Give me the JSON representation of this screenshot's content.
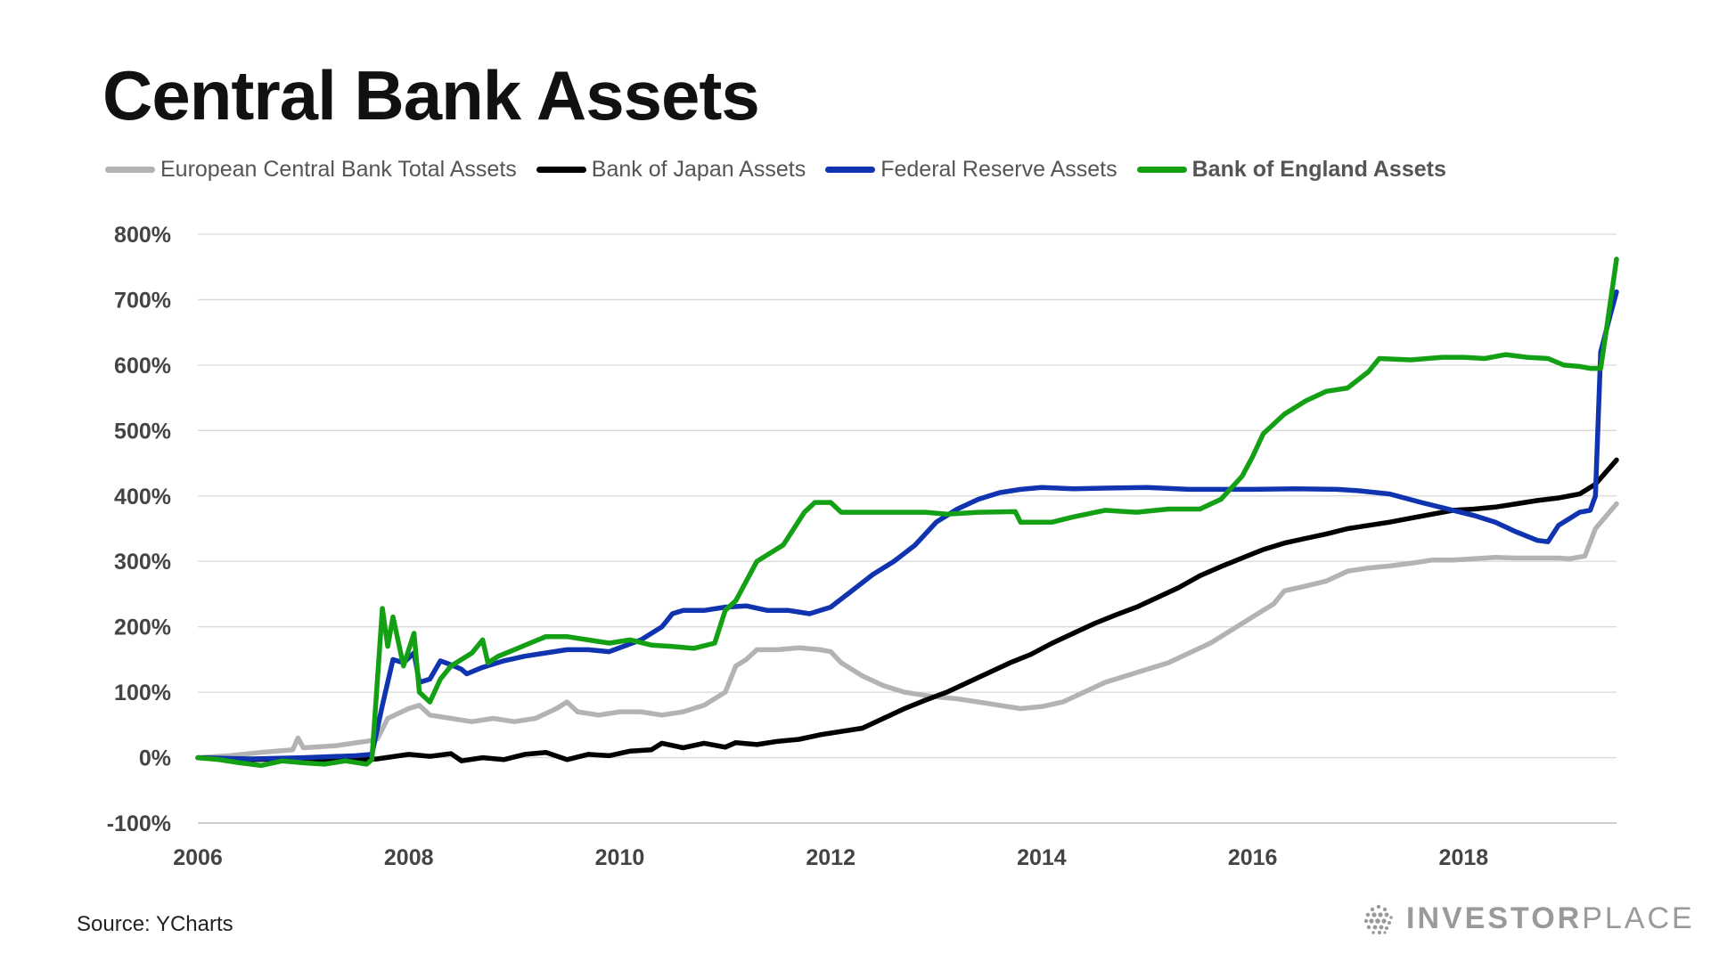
{
  "title": "Central Bank Assets",
  "source": "Source: YCharts",
  "brand": {
    "bold": "INVESTOR",
    "light": "PLACE"
  },
  "chart_data": {
    "type": "line",
    "title": "Central Bank Assets",
    "xlabel": "",
    "ylabel": "",
    "xlim": [
      2006,
      2019.45
    ],
    "ylim": [
      -100,
      800
    ],
    "grid": true,
    "legend_position": "top",
    "x_ticks": [
      2006,
      2008,
      2010,
      2012,
      2014,
      2016,
      2018
    ],
    "x_tick_labels": [
      "2006",
      "2008",
      "2010",
      "2012",
      "2014",
      "2016",
      "2018"
    ],
    "y_ticks": [
      -100,
      0,
      100,
      200,
      300,
      400,
      500,
      600,
      700,
      800
    ],
    "y_tick_labels": [
      "-100%",
      "0%",
      "100%",
      "200%",
      "300%",
      "400%",
      "500%",
      "600%",
      "700%",
      "800%"
    ],
    "series": [
      {
        "name": "European Central Bank Total Assets",
        "color": "#b3b3b3",
        "bold": false,
        "points": [
          [
            2006,
            0
          ],
          [
            2006.3,
            3
          ],
          [
            2006.6,
            8
          ],
          [
            2006.9,
            12
          ],
          [
            2006.95,
            30
          ],
          [
            2007.0,
            15
          ],
          [
            2007.3,
            18
          ],
          [
            2007.6,
            25
          ],
          [
            2007.7,
            28
          ],
          [
            2007.8,
            60
          ],
          [
            2008.0,
            75
          ],
          [
            2008.1,
            80
          ],
          [
            2008.2,
            65
          ],
          [
            2008.4,
            60
          ],
          [
            2008.6,
            55
          ],
          [
            2008.8,
            60
          ],
          [
            2009.0,
            55
          ],
          [
            2009.2,
            60
          ],
          [
            2009.4,
            75
          ],
          [
            2009.5,
            85
          ],
          [
            2009.6,
            70
          ],
          [
            2009.8,
            65
          ],
          [
            2010.0,
            70
          ],
          [
            2010.2,
            70
          ],
          [
            2010.4,
            65
          ],
          [
            2010.6,
            70
          ],
          [
            2010.8,
            80
          ],
          [
            2011.0,
            100
          ],
          [
            2011.1,
            140
          ],
          [
            2011.2,
            150
          ],
          [
            2011.3,
            165
          ],
          [
            2011.5,
            165
          ],
          [
            2011.7,
            168
          ],
          [
            2011.9,
            165
          ],
          [
            2012.0,
            162
          ],
          [
            2012.1,
            145
          ],
          [
            2012.3,
            125
          ],
          [
            2012.5,
            110
          ],
          [
            2012.7,
            100
          ],
          [
            2012.9,
            95
          ],
          [
            2013.0,
            93
          ],
          [
            2013.2,
            90
          ],
          [
            2013.4,
            85
          ],
          [
            2013.6,
            80
          ],
          [
            2013.8,
            75
          ],
          [
            2014.0,
            78
          ],
          [
            2014.2,
            85
          ],
          [
            2014.4,
            100
          ],
          [
            2014.6,
            115
          ],
          [
            2014.8,
            125
          ],
          [
            2015.0,
            135
          ],
          [
            2015.2,
            145
          ],
          [
            2015.4,
            160
          ],
          [
            2015.6,
            175
          ],
          [
            2015.8,
            195
          ],
          [
            2016.0,
            215
          ],
          [
            2016.2,
            235
          ],
          [
            2016.3,
            255
          ],
          [
            2016.5,
            262
          ],
          [
            2016.7,
            270
          ],
          [
            2016.9,
            285
          ],
          [
            2017.1,
            290
          ],
          [
            2017.3,
            293
          ],
          [
            2017.5,
            297
          ],
          [
            2017.7,
            302
          ],
          [
            2017.9,
            302
          ],
          [
            2018.1,
            304
          ],
          [
            2018.3,
            306
          ],
          [
            2018.5,
            305
          ],
          [
            2018.7,
            305
          ],
          [
            2018.9,
            305
          ],
          [
            2019.0,
            304
          ],
          [
            2019.15,
            308
          ],
          [
            2019.25,
            350
          ],
          [
            2019.45,
            388
          ]
        ]
      },
      {
        "name": "Bank of Japan Assets",
        "color": "#000000",
        "bold": false,
        "points": [
          [
            2006,
            0
          ],
          [
            2006.5,
            -3
          ],
          [
            2007.0,
            -2
          ],
          [
            2007.5,
            -4
          ],
          [
            2007.7,
            -2
          ],
          [
            2008.0,
            5
          ],
          [
            2008.2,
            2
          ],
          [
            2008.4,
            6
          ],
          [
            2008.5,
            -5
          ],
          [
            2008.7,
            0
          ],
          [
            2008.9,
            -3
          ],
          [
            2009.1,
            5
          ],
          [
            2009.3,
            8
          ],
          [
            2009.5,
            -3
          ],
          [
            2009.7,
            5
          ],
          [
            2009.9,
            3
          ],
          [
            2010.1,
            10
          ],
          [
            2010.3,
            12
          ],
          [
            2010.4,
            22
          ],
          [
            2010.6,
            15
          ],
          [
            2010.8,
            22
          ],
          [
            2011.0,
            16
          ],
          [
            2011.1,
            23
          ],
          [
            2011.3,
            20
          ],
          [
            2011.5,
            25
          ],
          [
            2011.7,
            28
          ],
          [
            2011.9,
            35
          ],
          [
            2012.1,
            40
          ],
          [
            2012.3,
            45
          ],
          [
            2012.5,
            60
          ],
          [
            2012.7,
            75
          ],
          [
            2012.9,
            88
          ],
          [
            2013.1,
            100
          ],
          [
            2013.3,
            115
          ],
          [
            2013.5,
            130
          ],
          [
            2013.7,
            145
          ],
          [
            2013.9,
            158
          ],
          [
            2014.1,
            175
          ],
          [
            2014.3,
            190
          ],
          [
            2014.5,
            205
          ],
          [
            2014.7,
            218
          ],
          [
            2014.9,
            230
          ],
          [
            2015.1,
            245
          ],
          [
            2015.3,
            260
          ],
          [
            2015.5,
            278
          ],
          [
            2015.7,
            292
          ],
          [
            2015.9,
            305
          ],
          [
            2016.1,
            318
          ],
          [
            2016.3,
            328
          ],
          [
            2016.5,
            335
          ],
          [
            2016.7,
            342
          ],
          [
            2016.9,
            350
          ],
          [
            2017.1,
            355
          ],
          [
            2017.3,
            360
          ],
          [
            2017.5,
            366
          ],
          [
            2017.7,
            372
          ],
          [
            2017.9,
            378
          ],
          [
            2018.1,
            380
          ],
          [
            2018.3,
            383
          ],
          [
            2018.5,
            388
          ],
          [
            2018.7,
            393
          ],
          [
            2018.9,
            397
          ],
          [
            2019.1,
            403
          ],
          [
            2019.25,
            418
          ],
          [
            2019.45,
            455
          ]
        ]
      },
      {
        "name": "Federal Reserve Assets",
        "color": "#1033b0",
        "bold": false,
        "points": [
          [
            2006,
            0
          ],
          [
            2006.5,
            -2
          ],
          [
            2007.0,
            0
          ],
          [
            2007.5,
            3
          ],
          [
            2007.65,
            5
          ],
          [
            2007.75,
            80
          ],
          [
            2007.85,
            150
          ],
          [
            2007.95,
            145
          ],
          [
            2008.05,
            160
          ],
          [
            2008.1,
            115
          ],
          [
            2008.2,
            120
          ],
          [
            2008.3,
            148
          ],
          [
            2008.4,
            142
          ],
          [
            2008.5,
            135
          ],
          [
            2008.55,
            128
          ],
          [
            2008.7,
            138
          ],
          [
            2008.9,
            148
          ],
          [
            2009.1,
            155
          ],
          [
            2009.3,
            160
          ],
          [
            2009.5,
            165
          ],
          [
            2009.7,
            165
          ],
          [
            2009.9,
            162
          ],
          [
            2010.0,
            168
          ],
          [
            2010.2,
            180
          ],
          [
            2010.4,
            200
          ],
          [
            2010.5,
            220
          ],
          [
            2010.6,
            225
          ],
          [
            2010.8,
            225
          ],
          [
            2011.0,
            230
          ],
          [
            2011.2,
            232
          ],
          [
            2011.4,
            225
          ],
          [
            2011.6,
            225
          ],
          [
            2011.8,
            220
          ],
          [
            2012.0,
            230
          ],
          [
            2012.2,
            255
          ],
          [
            2012.4,
            280
          ],
          [
            2012.6,
            300
          ],
          [
            2012.8,
            325
          ],
          [
            2013.0,
            360
          ],
          [
            2013.2,
            380
          ],
          [
            2013.4,
            395
          ],
          [
            2013.6,
            405
          ],
          [
            2013.8,
            410
          ],
          [
            2014.0,
            413
          ],
          [
            2014.3,
            411
          ],
          [
            2014.6,
            412
          ],
          [
            2015.0,
            413
          ],
          [
            2015.4,
            410
          ],
          [
            2015.8,
            410
          ],
          [
            2016.0,
            410
          ],
          [
            2016.4,
            411
          ],
          [
            2016.8,
            410
          ],
          [
            2017.0,
            408
          ],
          [
            2017.3,
            403
          ],
          [
            2017.6,
            390
          ],
          [
            2017.9,
            378
          ],
          [
            2018.1,
            370
          ],
          [
            2018.3,
            360
          ],
          [
            2018.5,
            345
          ],
          [
            2018.7,
            332
          ],
          [
            2018.8,
            330
          ],
          [
            2018.9,
            355
          ],
          [
            2019.0,
            365
          ],
          [
            2019.1,
            375
          ],
          [
            2019.2,
            378
          ],
          [
            2019.25,
            400
          ],
          [
            2019.3,
            620
          ],
          [
            2019.38,
            670
          ],
          [
            2019.45,
            712
          ]
        ]
      },
      {
        "name": "Bank of England Assets",
        "color": "#14a014",
        "bold": true,
        "points": [
          [
            2006,
            0
          ],
          [
            2006.2,
            -3
          ],
          [
            2006.4,
            -8
          ],
          [
            2006.6,
            -12
          ],
          [
            2006.8,
            -5
          ],
          [
            2007.0,
            -8
          ],
          [
            2007.2,
            -10
          ],
          [
            2007.4,
            -5
          ],
          [
            2007.6,
            -10
          ],
          [
            2007.65,
            -3
          ],
          [
            2007.75,
            228
          ],
          [
            2007.8,
            170
          ],
          [
            2007.85,
            215
          ],
          [
            2007.95,
            140
          ],
          [
            2008.05,
            190
          ],
          [
            2008.1,
            100
          ],
          [
            2008.2,
            85
          ],
          [
            2008.3,
            120
          ],
          [
            2008.4,
            140
          ],
          [
            2008.5,
            150
          ],
          [
            2008.6,
            160
          ],
          [
            2008.7,
            180
          ],
          [
            2008.75,
            145
          ],
          [
            2008.85,
            155
          ],
          [
            2009.0,
            165
          ],
          [
            2009.15,
            175
          ],
          [
            2009.3,
            185
          ],
          [
            2009.5,
            185
          ],
          [
            2009.7,
            180
          ],
          [
            2009.9,
            175
          ],
          [
            2010.1,
            180
          ],
          [
            2010.3,
            172
          ],
          [
            2010.5,
            170
          ],
          [
            2010.7,
            167
          ],
          [
            2010.9,
            175
          ],
          [
            2011.0,
            225
          ],
          [
            2011.1,
            240
          ],
          [
            2011.2,
            270
          ],
          [
            2011.3,
            300
          ],
          [
            2011.45,
            315
          ],
          [
            2011.55,
            325
          ],
          [
            2011.65,
            350
          ],
          [
            2011.75,
            375
          ],
          [
            2011.85,
            390
          ],
          [
            2012.0,
            390
          ],
          [
            2012.1,
            375
          ],
          [
            2012.5,
            375
          ],
          [
            2012.9,
            375
          ],
          [
            2013.1,
            372
          ],
          [
            2013.4,
            375
          ],
          [
            2013.75,
            376
          ],
          [
            2013.8,
            360
          ],
          [
            2014.1,
            360
          ],
          [
            2014.3,
            368
          ],
          [
            2014.6,
            378
          ],
          [
            2014.9,
            375
          ],
          [
            2015.2,
            380
          ],
          [
            2015.5,
            380
          ],
          [
            2015.7,
            395
          ],
          [
            2015.9,
            430
          ],
          [
            2016.0,
            460
          ],
          [
            2016.1,
            495
          ],
          [
            2016.3,
            525
          ],
          [
            2016.5,
            545
          ],
          [
            2016.7,
            560
          ],
          [
            2016.9,
            565
          ],
          [
            2017.1,
            590
          ],
          [
            2017.2,
            610
          ],
          [
            2017.5,
            608
          ],
          [
            2017.8,
            612
          ],
          [
            2018.0,
            612
          ],
          [
            2018.2,
            610
          ],
          [
            2018.4,
            616
          ],
          [
            2018.6,
            612
          ],
          [
            2018.8,
            610
          ],
          [
            2018.95,
            600
          ],
          [
            2019.1,
            598
          ],
          [
            2019.2,
            595
          ],
          [
            2019.3,
            595
          ],
          [
            2019.35,
            650
          ],
          [
            2019.45,
            762
          ]
        ]
      }
    ]
  }
}
